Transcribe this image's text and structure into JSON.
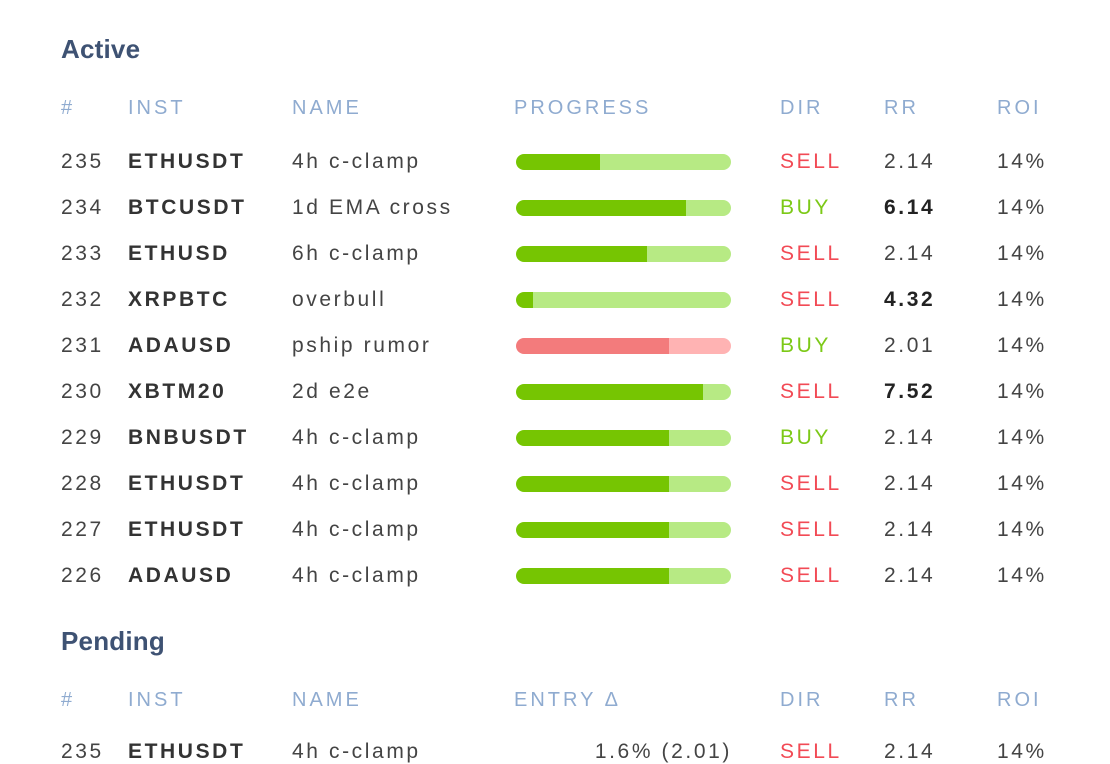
{
  "active": {
    "title": "Active",
    "headers": {
      "num": "#",
      "inst": "INST",
      "name": "NAME",
      "progress": "PROGRESS",
      "dir": "DIR",
      "rr": "RR",
      "roi": "ROI"
    },
    "rows": [
      {
        "num": "235",
        "inst": "ETHUSDT",
        "name": "4h c-clamp",
        "progress": 0.39,
        "tone": "green",
        "dir": "SELL",
        "rr": "2.14",
        "rr_bold": false,
        "roi": "14%"
      },
      {
        "num": "234",
        "inst": "BTCUSDT",
        "name": "1d EMA cross",
        "progress": 0.79,
        "tone": "green",
        "dir": "BUY",
        "rr": "6.14",
        "rr_bold": true,
        "roi": "14%"
      },
      {
        "num": "233",
        "inst": "ETHUSD",
        "name": "6h c-clamp",
        "progress": 0.61,
        "tone": "green",
        "dir": "SELL",
        "rr": "2.14",
        "rr_bold": false,
        "roi": "14%"
      },
      {
        "num": "232",
        "inst": "XRPBTC",
        "name": "overbull",
        "progress": 0.08,
        "tone": "green",
        "dir": "SELL",
        "rr": "4.32",
        "rr_bold": true,
        "roi": "14%"
      },
      {
        "num": "231",
        "inst": "ADAUSD",
        "name": "pship rumor",
        "progress": 0.71,
        "tone": "red",
        "dir": "BUY",
        "rr": "2.01",
        "rr_bold": false,
        "roi": "14%"
      },
      {
        "num": "230",
        "inst": "XBTM20",
        "name": "2d e2e",
        "progress": 0.87,
        "tone": "green",
        "dir": "SELL",
        "rr": "7.52",
        "rr_bold": true,
        "roi": "14%"
      },
      {
        "num": "229",
        "inst": "BNBUSDT",
        "name": "4h c-clamp",
        "progress": 0.71,
        "tone": "green",
        "dir": "BUY",
        "rr": "2.14",
        "rr_bold": false,
        "roi": "14%"
      },
      {
        "num": "228",
        "inst": "ETHUSDT",
        "name": "4h c-clamp",
        "progress": 0.71,
        "tone": "green",
        "dir": "SELL",
        "rr": "2.14",
        "rr_bold": false,
        "roi": "14%"
      },
      {
        "num": "227",
        "inst": "ETHUSDT",
        "name": "4h c-clamp",
        "progress": 0.71,
        "tone": "green",
        "dir": "SELL",
        "rr": "2.14",
        "rr_bold": false,
        "roi": "14%"
      },
      {
        "num": "226",
        "inst": "ADAUSD",
        "name": "4h c-clamp",
        "progress": 0.71,
        "tone": "green",
        "dir": "SELL",
        "rr": "2.14",
        "rr_bold": false,
        "roi": "14%"
      }
    ]
  },
  "pending": {
    "title": "Pending",
    "headers": {
      "num": "#",
      "inst": "INST",
      "name": "NAME",
      "entry": "ENTRY Δ",
      "dir": "DIR",
      "rr": "RR",
      "roi": "ROI"
    },
    "rows": [
      {
        "num": "235",
        "inst": "ETHUSDT",
        "name": "4h c-clamp",
        "entry": "1.6% (2.01)",
        "dir": "SELL",
        "rr": "2.14",
        "roi": "14%"
      }
    ]
  },
  "colors": {
    "section_title": "#3e5273",
    "header_text": "#8fabd0",
    "sell": "#f24a55",
    "buy": "#7cc917",
    "progress_fill_green": "#76c502",
    "progress_track_green": "#b7ea84",
    "progress_fill_red": "#f37b7c",
    "progress_track_red": "#ffb3b3"
  }
}
